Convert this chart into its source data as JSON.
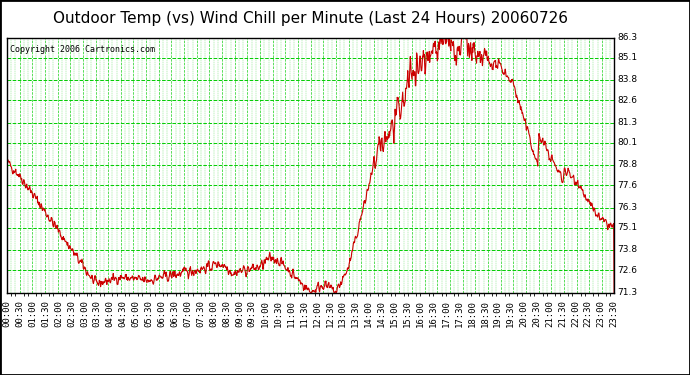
{
  "title": "Outdoor Temp (vs) Wind Chill per Minute (Last 24 Hours) 20060726",
  "copyright": "Copyright 2006 Cartronics.com",
  "bg_color": "#ffffff",
  "plot_bg_color": "#ffffff",
  "line_color": "#cc0000",
  "grid_color": "#00cc00",
  "yticks": [
    71.3,
    72.6,
    73.8,
    75.1,
    76.3,
    77.6,
    78.8,
    80.1,
    81.3,
    82.6,
    83.8,
    85.1,
    86.3
  ],
  "ymin": 71.3,
  "ymax": 86.3,
  "title_fontsize": 11,
  "copyright_fontsize": 6,
  "tick_fontsize": 6.5,
  "xtick_labels": [
    "00:00",
    "00:30",
    "01:00",
    "01:30",
    "02:00",
    "02:30",
    "03:00",
    "03:30",
    "04:00",
    "04:30",
    "05:00",
    "05:30",
    "06:00",
    "06:30",
    "07:00",
    "07:30",
    "08:00",
    "08:30",
    "09:00",
    "09:30",
    "10:00",
    "10:30",
    "11:00",
    "11:30",
    "12:00",
    "12:30",
    "13:00",
    "13:30",
    "14:00",
    "14:30",
    "15:00",
    "15:30",
    "16:00",
    "16:30",
    "17:00",
    "17:30",
    "18:00",
    "18:30",
    "19:00",
    "19:30",
    "20:00",
    "20:30",
    "21:00",
    "21:30",
    "22:00",
    "22:30",
    "23:00",
    "23:30"
  ]
}
